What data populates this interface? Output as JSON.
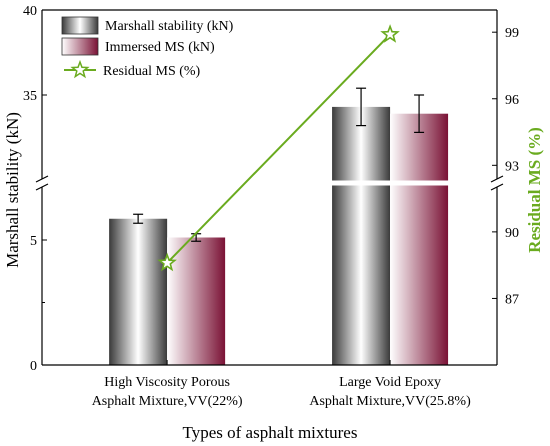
{
  "chart_data": {
    "type": "bar",
    "xlabel": "Types of asphalt mixtures",
    "ylabel": "Marshall stability (kN)",
    "y2label": "Residual MS (%)",
    "categories": [
      [
        "High Viscosity Porous",
        "Asphalt Mixture,VV(22%)"
      ],
      [
        "Large Void Epoxy",
        "Asphalt Mixture,VV(25.8%)"
      ]
    ],
    "axis_break": true,
    "y_lower_range": [
      0,
      7
    ],
    "y_upper_range": [
      30,
      40
    ],
    "y_ticks_lower": [
      0,
      5
    ],
    "y_ticks_upper": [
      35,
      40
    ],
    "y2lim": [
      84,
      100
    ],
    "y2_ticks": [
      87,
      90,
      93,
      96,
      99
    ],
    "series": [
      {
        "name": "Marshall stability (kN)",
        "type": "bar",
        "values": [
          5.85,
          34.3
        ],
        "errors": [
          0.18,
          1.1
        ],
        "color": "#9a9a9a"
      },
      {
        "name": "Immersed MS (kN)",
        "type": "bar",
        "values": [
          5.1,
          33.9
        ],
        "errors": [
          0.15,
          1.1
        ],
        "color": "#8b1a3c"
      },
      {
        "name": "Residual MS (%)",
        "type": "line",
        "axis": "right",
        "values": [
          88.6,
          98.9
        ],
        "color": "#6aab1f"
      }
    ],
    "legend_position": "top-left",
    "right_axis_color": "#6aab1f"
  }
}
